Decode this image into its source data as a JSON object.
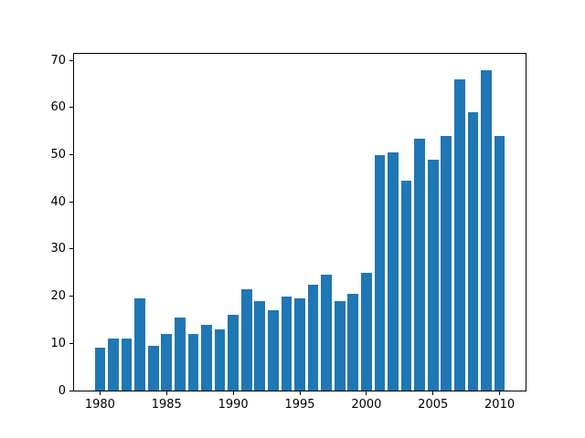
{
  "figure": {
    "background_color": "#ffffff",
    "spine_color": "#000000",
    "tick_color": "#000000"
  },
  "chart_data": {
    "type": "bar",
    "title": "",
    "xlabel": "",
    "ylabel": "",
    "categories": [
      1980,
      1981,
      1982,
      1983,
      1984,
      1985,
      1986,
      1987,
      1988,
      1989,
      1990,
      1991,
      1992,
      1993,
      1994,
      1995,
      1996,
      1997,
      1998,
      1999,
      2000,
      2001,
      2002,
      2003,
      2004,
      2005,
      2006,
      2007,
      2008,
      2009,
      2010
    ],
    "values": [
      9,
      11,
      11,
      19.5,
      9.5,
      12,
      15.5,
      12,
      14,
      13,
      16,
      21.5,
      19,
      17,
      20,
      19.5,
      22.5,
      24.5,
      19,
      20.5,
      25,
      50,
      50.5,
      44.5,
      53.5,
      49,
      54,
      66,
      59,
      68,
      54
    ],
    "bar_color": "#1f77b4",
    "bar_width_x_units": 0.8,
    "xticks": [
      1980,
      1985,
      1990,
      1995,
      2000,
      2005,
      2010
    ],
    "yticks": [
      0,
      10,
      20,
      30,
      40,
      50,
      60,
      70
    ],
    "xlim": [
      1978.05,
      2011.95
    ],
    "ylim": [
      0,
      71.4
    ],
    "grid": false,
    "legend": null
  }
}
